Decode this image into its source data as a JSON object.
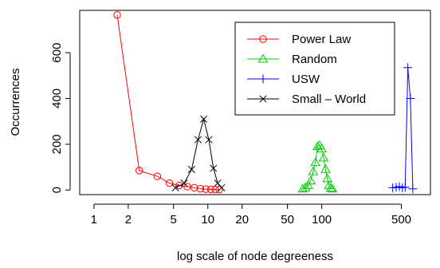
{
  "chart_data": {
    "type": "line",
    "xlabel": "log scale of node degreeness",
    "ylabel": "Occurrences",
    "x_scale": "log",
    "xlim": [
      0.75,
      900
    ],
    "ylim": [
      -20,
      785
    ],
    "x_ticks": [
      1,
      2,
      5,
      10,
      20,
      50,
      100,
      500
    ],
    "x_tick_labels": [
      "1",
      "2",
      "5",
      "10",
      "20",
      "50",
      "100",
      "500"
    ],
    "y_ticks": [
      0,
      200,
      400,
      600
    ],
    "y_tick_labels": [
      "0",
      "200",
      "400",
      "600"
    ],
    "legend": {
      "placement": "top-right",
      "entries": [
        {
          "label": "Power Law",
          "color": "#ff0000",
          "marker": "circle"
        },
        {
          "label": "Random",
          "color": "#00cc00",
          "marker": "triangle"
        },
        {
          "label": "USW",
          "color": "#0000ff",
          "marker": "plus"
        },
        {
          "label": "Small – World",
          "color": "#000000",
          "marker": "cross"
        }
      ]
    },
    "series": [
      {
        "name": "Power Law",
        "color": "#ff0000",
        "marker": "circle",
        "x": [
          1.6,
          2.5,
          3.6,
          4.6,
          5.6,
          6.6,
          7.6,
          8.6,
          9.6,
          10.6,
          11.6,
          12.6
        ],
        "y": [
          765,
          85,
          60,
          30,
          20,
          15,
          10,
          6,
          4,
          3,
          2,
          2
        ]
      },
      {
        "name": "Random",
        "color": "#00cc00",
        "marker": "triangle",
        "x": [
          68,
          72,
          76,
          80,
          84,
          88,
          92,
          96,
          100,
          104,
          108,
          112,
          116,
          120,
          124
        ],
        "y": [
          5,
          10,
          20,
          40,
          80,
          120,
          190,
          195,
          180,
          140,
          90,
          50,
          20,
          8,
          5
        ]
      },
      {
        "name": "USW",
        "color": "#0000ff",
        "marker": "plus",
        "x": [
          420,
          450,
          480,
          510,
          540,
          570,
          600,
          630
        ],
        "y": [
          10,
          12,
          15,
          10,
          12,
          535,
          400,
          5
        ]
      },
      {
        "name": "Small – World",
        "color": "#000000",
        "marker": "cross",
        "x": [
          5.2,
          6.2,
          7.2,
          8.2,
          9.2,
          10.2,
          11.2,
          12.2,
          13.2
        ],
        "y": [
          10,
          30,
          90,
          220,
          310,
          220,
          95,
          30,
          10
        ]
      }
    ]
  }
}
